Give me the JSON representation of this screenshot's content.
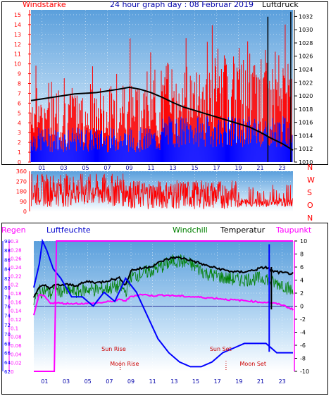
{
  "header": {
    "title": "24 hour graph day : 08 Februar 2019",
    "left_label": "Windstärke",
    "right_label": "Luftdruck"
  },
  "colors": {
    "wind": "#ff0000",
    "wind_low": "#0000ff",
    "pressure": "#000000",
    "humidity": "#0000ff",
    "windchill": "#008000",
    "temperature": "#000000",
    "dewpoint": "#ff00ff",
    "rain": "#ff00ff",
    "axis_left": "#ff0000",
    "axis_blue": "#0000ff",
    "astro": "#cc0000"
  },
  "chart_data": [
    {
      "type": "bar",
      "name": "wind-pressure",
      "y_ticks": [
        "0",
        "1",
        "2",
        "3",
        "4",
        "5",
        "6",
        "7",
        "8",
        "9",
        "10",
        "11",
        "12",
        "13",
        "14",
        "15"
      ],
      "y2_ticks": [
        "1010",
        "1012",
        "1014",
        "1016",
        "1018",
        "1020",
        "1022",
        "1024",
        "1026",
        "1028",
        "1030",
        "1032"
      ],
      "x_ticks": [
        "01",
        "03",
        "05",
        "07",
        "09",
        "11",
        "13",
        "15",
        "17",
        "19",
        "21",
        "23"
      ],
      "ylim": [
        0,
        15.5
      ],
      "y2lim": [
        1010,
        1033
      ],
      "grid": true,
      "pressure": {
        "x": [
          0,
          2,
          4,
          6,
          8,
          9,
          10,
          11,
          12,
          13,
          14,
          15,
          16,
          17,
          18,
          19,
          20,
          21,
          22,
          23,
          24
        ],
        "y": [
          1019.3,
          1019.8,
          1020.3,
          1020.5,
          1021.0,
          1021.3,
          1021.0,
          1020.5,
          1019.8,
          1019.0,
          1018.3,
          1017.8,
          1017.3,
          1016.8,
          1016.3,
          1015.8,
          1015.3,
          1014.5,
          1013.6,
          1012.8,
          1011.8
        ]
      },
      "gust_spikes": [
        {
          "x": 21.7,
          "y": 14.8
        },
        {
          "x": 23.8,
          "y": 15.3
        }
      ]
    },
    {
      "type": "line",
      "name": "wind-direction",
      "y_ticks": [
        "0",
        "90",
        "180",
        "270",
        "360"
      ],
      "right_labels": [
        "N",
        "W",
        "S",
        "O",
        "N"
      ],
      "ylim": [
        0,
        360
      ],
      "grid": true
    },
    {
      "type": "line",
      "name": "climate",
      "labels": {
        "rain": "Regen",
        "humidity": "Luftfeuchte",
        "windchill": "Windchill",
        "temperature": "Temperatur",
        "dewpoint": "Taupunkt"
      },
      "rain_ticks": [
        "0",
        "0.02",
        "0.04",
        "0.06",
        "0.08",
        "0.1",
        "0.12",
        "0.14",
        "0.16",
        "0.18",
        "0.2",
        "0.22",
        "0.24",
        "0.26",
        "0.28",
        "0.3"
      ],
      "humidity_ticks": [
        "62",
        "64",
        "66",
        "68",
        "70",
        "72",
        "74",
        "76",
        "78",
        "80",
        "82",
        "84",
        "86",
        "88",
        "90"
      ],
      "temp_ticks": [
        "-10",
        "-8",
        "-6",
        "-4",
        "-2",
        "0",
        "2",
        "4",
        "6",
        "8",
        "10"
      ],
      "x_ticks": [
        "01",
        "03",
        "05",
        "07",
        "09",
        "11",
        "13",
        "15",
        "17",
        "19",
        "21",
        "23"
      ],
      "ylim": [
        -10,
        10
      ],
      "grid": true,
      "temperature": {
        "x": [
          0,
          0.5,
          1,
          1.5,
          2,
          3,
          4,
          5,
          6,
          7,
          8,
          8.5,
          9,
          10,
          11,
          12,
          13,
          14,
          15,
          16,
          17,
          18,
          19,
          20,
          21,
          21.5,
          22,
          23,
          24
        ],
        "y": [
          1.5,
          2.8,
          3.2,
          2.8,
          3.2,
          3.3,
          3.2,
          3.8,
          3.6,
          4.0,
          4.3,
          3.2,
          5.5,
          5.8,
          6.2,
          7.0,
          7.5,
          7.3,
          6.8,
          6.2,
          5.8,
          5.4,
          5.2,
          5.4,
          5.8,
          6.0,
          5.4,
          5.1,
          5.0
        ]
      },
      "windchill": {
        "x": [
          0,
          0.5,
          1,
          1.5,
          2,
          3,
          4,
          5,
          6,
          7,
          8,
          8.5,
          9,
          10,
          11,
          12,
          13,
          14,
          15,
          16,
          17,
          18,
          19,
          20,
          21,
          21.5,
          22,
          23,
          24
        ],
        "y": [
          0.5,
          2.2,
          2.5,
          1.8,
          2.5,
          2.3,
          2.2,
          2.6,
          2.5,
          2.8,
          3.0,
          2.2,
          4.5,
          5.0,
          5.5,
          6.2,
          7.0,
          6.8,
          6.0,
          5.0,
          4.6,
          4.2,
          4.0,
          4.2,
          4.2,
          4.4,
          3.6,
          3.4,
          2.2
        ]
      },
      "dewpoint": {
        "x": [
          0,
          0.5,
          1,
          1.5,
          2,
          3,
          4,
          5,
          6,
          7,
          8,
          8.5,
          9,
          10,
          11,
          12,
          13,
          14,
          15,
          16,
          17,
          18,
          19,
          20,
          21,
          21.5,
          22,
          23,
          24
        ],
        "y": [
          -1.5,
          1.8,
          1.5,
          0.5,
          0.5,
          0.4,
          0.4,
          0.4,
          0.5,
          0.7,
          1.0,
          0.8,
          1.5,
          1.8,
          1.6,
          1.7,
          1.6,
          1.5,
          1.4,
          1.3,
          1.2,
          1.0,
          0.9,
          0.8,
          0.6,
          0.6,
          0.5,
          0.2,
          -0.5
        ]
      },
      "humidity": {
        "x": [
          0,
          0.5,
          0.8,
          1.2,
          1.8,
          2.5,
          3.5,
          4.5,
          5.5,
          6.5,
          7.5,
          8.5,
          9.5,
          10.5,
          11.5,
          12.5,
          13.5,
          14.5,
          15.5,
          16.5,
          17.5,
          18.5,
          19.5,
          20.5,
          21.5,
          22.5,
          23,
          24
        ],
        "y": [
          80,
          85,
          90,
          88,
          84,
          82,
          78,
          78,
          76,
          79,
          77,
          82,
          79,
          74,
          69,
          66,
          64,
          63,
          63,
          64,
          66,
          67,
          68,
          68,
          68,
          66,
          66,
          66
        ]
      },
      "rain": {
        "x": [
          0,
          1.9,
          2.1,
          24
        ],
        "y": [
          0,
          0,
          0.3,
          0.3
        ]
      },
      "astro": {
        "sun_rise": "Sun Rise",
        "moon_rise": "Moon Rise",
        "sun_set": "Sun Set",
        "moon_set": "Moon Set"
      }
    }
  ]
}
